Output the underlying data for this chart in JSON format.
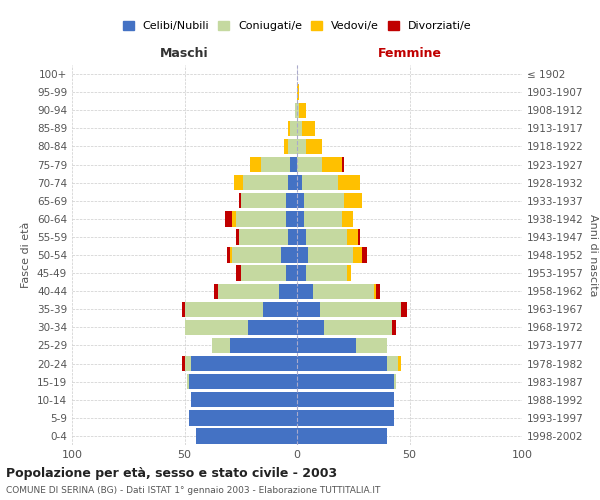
{
  "age_groups": [
    "0-4",
    "5-9",
    "10-14",
    "15-19",
    "20-24",
    "25-29",
    "30-34",
    "35-39",
    "40-44",
    "45-49",
    "50-54",
    "55-59",
    "60-64",
    "65-69",
    "70-74",
    "75-79",
    "80-84",
    "85-89",
    "90-94",
    "95-99",
    "100+"
  ],
  "birth_years": [
    "1998-2002",
    "1993-1997",
    "1988-1992",
    "1983-1987",
    "1978-1982",
    "1973-1977",
    "1968-1972",
    "1963-1967",
    "1958-1962",
    "1953-1957",
    "1948-1952",
    "1943-1947",
    "1938-1942",
    "1933-1937",
    "1928-1932",
    "1923-1927",
    "1918-1922",
    "1913-1917",
    "1908-1912",
    "1903-1907",
    "≤ 1902"
  ],
  "maschi": {
    "celibi": [
      45,
      48,
      47,
      48,
      47,
      30,
      22,
      15,
      8,
      5,
      7,
      4,
      5,
      5,
      4,
      3,
      0,
      0,
      0,
      0,
      0
    ],
    "coniugati": [
      0,
      0,
      0,
      1,
      3,
      8,
      28,
      35,
      27,
      20,
      22,
      22,
      22,
      20,
      20,
      13,
      4,
      3,
      1,
      0,
      0
    ],
    "vedovi": [
      0,
      0,
      0,
      0,
      0,
      0,
      0,
      0,
      0,
      0,
      1,
      0,
      2,
      0,
      4,
      5,
      2,
      1,
      0,
      0,
      0
    ],
    "divorziati": [
      0,
      0,
      0,
      0,
      1,
      0,
      0,
      1,
      2,
      2,
      1,
      1,
      3,
      1,
      0,
      0,
      0,
      0,
      0,
      0,
      0
    ]
  },
  "femmine": {
    "nubili": [
      40,
      43,
      43,
      43,
      40,
      26,
      12,
      10,
      7,
      4,
      5,
      4,
      3,
      3,
      2,
      0,
      0,
      0,
      0,
      0,
      0
    ],
    "coniugate": [
      0,
      0,
      0,
      1,
      5,
      14,
      30,
      36,
      27,
      18,
      20,
      18,
      17,
      18,
      16,
      11,
      4,
      2,
      1,
      0,
      0
    ],
    "vedove": [
      0,
      0,
      0,
      0,
      1,
      0,
      0,
      0,
      1,
      2,
      4,
      5,
      5,
      8,
      10,
      9,
      7,
      6,
      3,
      1,
      0
    ],
    "divorziate": [
      0,
      0,
      0,
      0,
      0,
      0,
      2,
      3,
      2,
      0,
      2,
      1,
      0,
      0,
      0,
      1,
      0,
      0,
      0,
      0,
      0
    ]
  },
  "colors": {
    "celibi_nubili": "#4472c4",
    "coniugati": "#c5d9a0",
    "vedovi": "#ffc000",
    "divorziati": "#c00000"
  },
  "xlim": 100,
  "title": "Popolazione per età, sesso e stato civile - 2003",
  "subtitle": "COMUNE DI SERINA (BG) - Dati ISTAT 1° gennaio 2003 - Elaborazione TUTTITALIA.IT",
  "xlabel_left": "Maschi",
  "xlabel_right": "Femmine",
  "ylabel_left": "Fasce di età",
  "ylabel_right": "Anni di nascita",
  "legend_labels": [
    "Celibi/Nubili",
    "Coniugati/e",
    "Vedovi/e",
    "Divorziati/e"
  ]
}
